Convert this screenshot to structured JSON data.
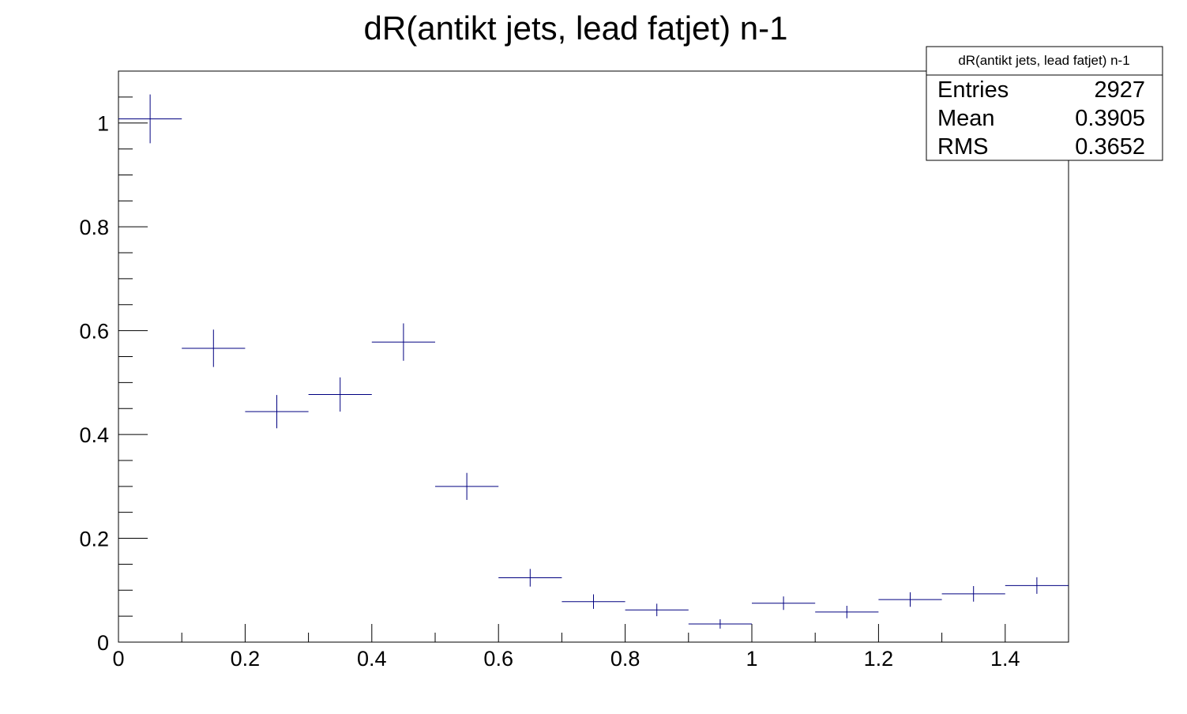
{
  "chart_data": {
    "type": "histogram",
    "title": "dR(antikt jets, lead fatjet) n-1",
    "xlabel": "",
    "ylabel": "",
    "xlim": [
      0,
      1.5
    ],
    "ylim": [
      0,
      1.1
    ],
    "grid": false,
    "legend": "none",
    "x_ticks": [
      "0",
      "0.2",
      "0.4",
      "0.6",
      "0.8",
      "1",
      "1.2",
      "1.4"
    ],
    "y_ticks": [
      "0",
      "0.2",
      "0.4",
      "0.6",
      "0.8",
      "1"
    ],
    "marker_color": "#000080",
    "bin_width": 0.1,
    "bins": [
      {
        "x": 0.05,
        "y": 1.008,
        "err": 0.047
      },
      {
        "x": 0.15,
        "y": 0.566,
        "err": 0.036
      },
      {
        "x": 0.25,
        "y": 0.444,
        "err": 0.032
      },
      {
        "x": 0.35,
        "y": 0.477,
        "err": 0.033
      },
      {
        "x": 0.45,
        "y": 0.578,
        "err": 0.036
      },
      {
        "x": 0.55,
        "y": 0.3,
        "err": 0.026
      },
      {
        "x": 0.65,
        "y": 0.124,
        "err": 0.017
      },
      {
        "x": 0.75,
        "y": 0.078,
        "err": 0.014
      },
      {
        "x": 0.85,
        "y": 0.062,
        "err": 0.012
      },
      {
        "x": 0.95,
        "y": 0.035,
        "err": 0.009
      },
      {
        "x": 1.05,
        "y": 0.075,
        "err": 0.013
      },
      {
        "x": 1.15,
        "y": 0.058,
        "err": 0.012
      },
      {
        "x": 1.25,
        "y": 0.082,
        "err": 0.014
      },
      {
        "x": 1.35,
        "y": 0.093,
        "err": 0.015
      },
      {
        "x": 1.45,
        "y": 0.109,
        "err": 0.016
      }
    ],
    "stats_box": {
      "title": "dR(antikt jets, lead fatjet) n-1",
      "rows": [
        {
          "label": "Entries",
          "value": "2927"
        },
        {
          "label": "Mean",
          "value": "0.3905"
        },
        {
          "label": "RMS",
          "value": "0.3652"
        }
      ]
    }
  }
}
